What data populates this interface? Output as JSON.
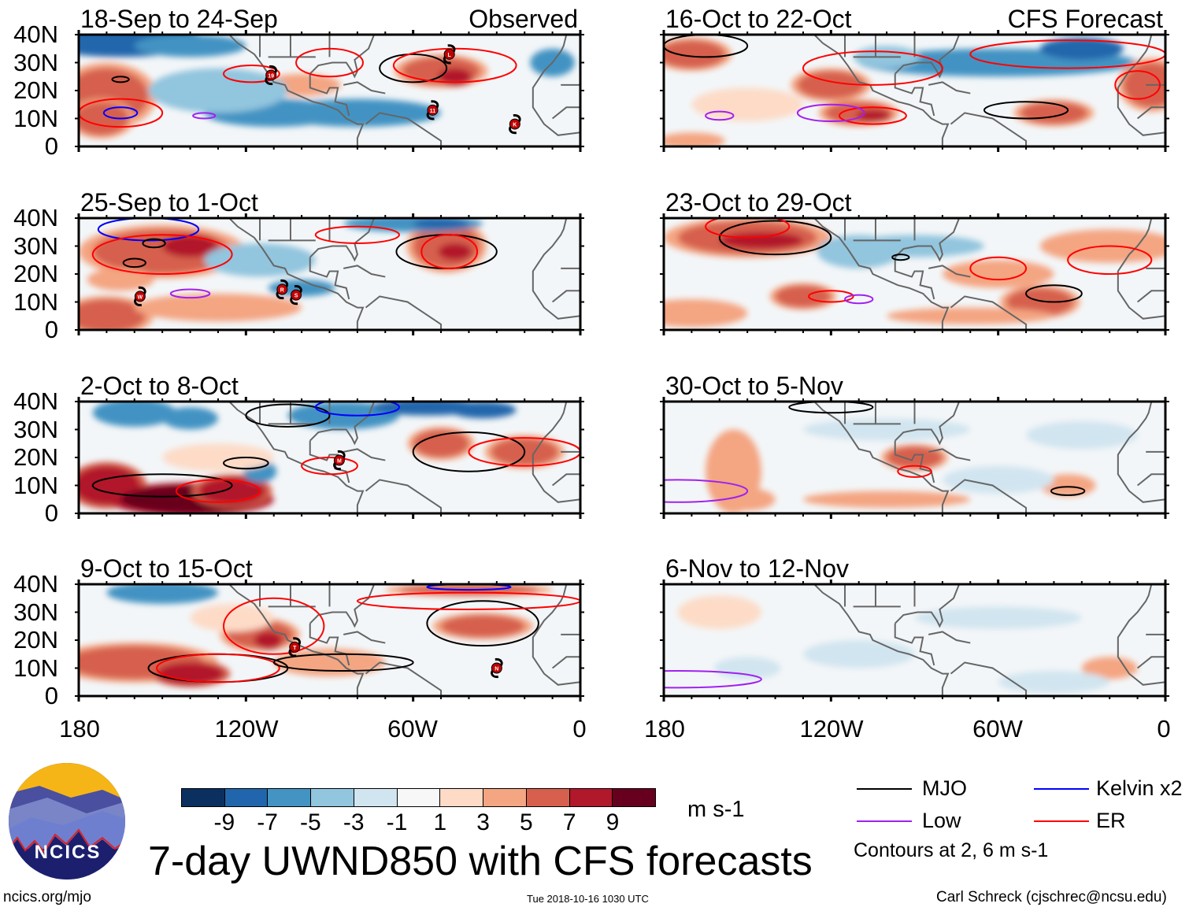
{
  "chart_data": {
    "type": "heatmap",
    "title": "7-day UWND850 with CFS forecasts",
    "units": "m s-1",
    "lat_ticks": [
      "40N",
      "30N",
      "20N",
      "10N",
      "0"
    ],
    "lon_ticks": [
      "180",
      "120W",
      "60W",
      "0"
    ],
    "lat_range": [
      0,
      40
    ],
    "lon_range": [
      -180,
      0
    ],
    "column_labels": {
      "left": "Observed",
      "right": "CFS Forecast"
    },
    "panels": [
      {
        "title": "18-Sep to 24-Sep",
        "column": "Observed",
        "storms": [
          {
            "label": "L",
            "lon": -47,
            "lat": 33
          },
          {
            "label": "19",
            "lon": -111,
            "lat": 25.5
          },
          {
            "label": "11",
            "lon": -53,
            "lat": 13
          },
          {
            "label": "K",
            "lon": -23.5,
            "lat": 8
          }
        ]
      },
      {
        "title": "25-Sep to 1-Oct",
        "column": "Observed",
        "storms": [
          {
            "label": "W",
            "lon": -158,
            "lat": 12
          },
          {
            "label": "R",
            "lon": -107,
            "lat": 14.5
          },
          {
            "label": "S",
            "lon": -102,
            "lat": 12.5
          }
        ]
      },
      {
        "title": "2-Oct to 8-Oct",
        "column": "Observed",
        "storms": [
          {
            "label": "M",
            "lon": -86.5,
            "lat": 19
          }
        ]
      },
      {
        "title": "9-Oct to 15-Oct",
        "column": "Observed",
        "storms": [
          {
            "label": "T",
            "lon": -102.5,
            "lat": 17.5
          },
          {
            "label": "N",
            "lon": -30,
            "lat": 10
          }
        ]
      },
      {
        "title": "16-Oct to 22-Oct",
        "column": "CFS Forecast",
        "storms": []
      },
      {
        "title": "23-Oct to 29-Oct",
        "column": "CFS Forecast",
        "storms": []
      },
      {
        "title": "30-Oct to 5-Nov",
        "column": "CFS Forecast",
        "storms": []
      },
      {
        "title": "6-Nov to 12-Nov",
        "column": "CFS Forecast",
        "storms": []
      }
    ],
    "colorbar": {
      "ticks": [
        "-9",
        "-7",
        "-5",
        "-3",
        "-1",
        "1",
        "3",
        "5",
        "7",
        "9"
      ],
      "colors": [
        "#0b3060",
        "#2166ac",
        "#4393c3",
        "#92c5de",
        "#d1e5f0",
        "#f7f7f7",
        "#fddbc7",
        "#f4a582",
        "#d6604d",
        "#b2182b",
        "#67001f"
      ],
      "units": "m s-1"
    },
    "legend": [
      {
        "label": "MJO",
        "color": "#000000"
      },
      {
        "label": "Kelvin x2",
        "color": "#0000ff"
      },
      {
        "label": "Low",
        "color": "#a020f0"
      },
      {
        "label": "ER",
        "color": "#ff0000"
      }
    ],
    "contour_note": "Contours at 2, 6 m s-1"
  },
  "footer": {
    "logo_text": "NCICS",
    "url": "ncics.org/mjo",
    "timestamp": "Tue 2018-10-16 1030 UTC",
    "author": "Carl Schreck (cjschrec@ncsu.edu)"
  }
}
